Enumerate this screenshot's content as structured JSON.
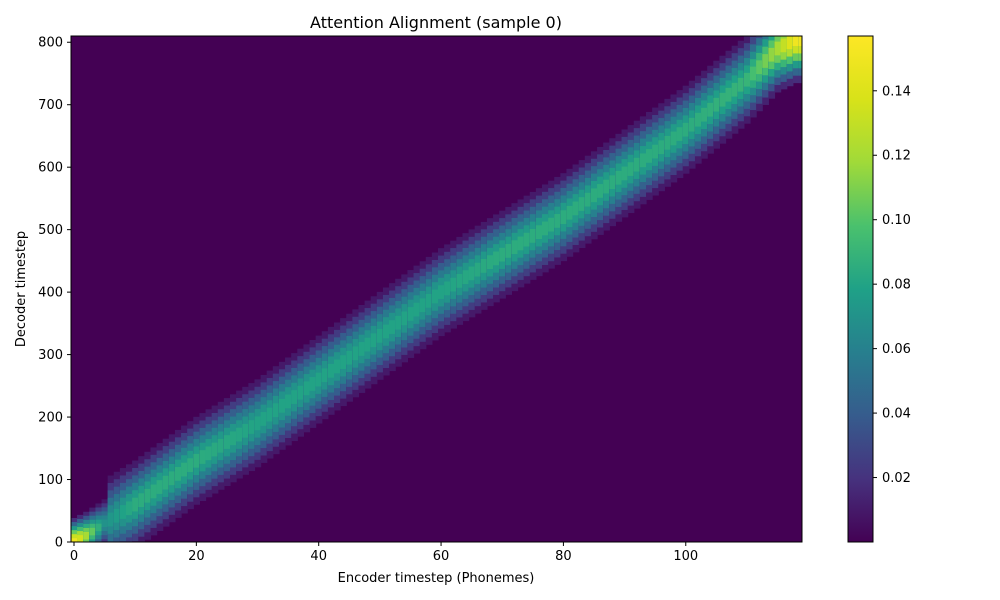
{
  "chart_data": {
    "type": "heatmap",
    "title": "Attention Alignment (sample 0)",
    "xlabel": "Encoder timestep (Phonemes)",
    "ylabel": "Decoder timestep",
    "xlim": [
      0,
      119
    ],
    "ylim": [
      0,
      810
    ],
    "x_ticks": [
      0,
      20,
      40,
      60,
      80,
      100
    ],
    "y_ticks": [
      0,
      100,
      200,
      300,
      400,
      500,
      600,
      700,
      800
    ],
    "colorbar": {
      "colormap": "viridis",
      "range": [
        0.0,
        0.157
      ],
      "ticks": [
        0.02,
        0.04,
        0.06,
        0.08,
        0.1,
        0.12,
        0.14
      ],
      "tick_labels": [
        "0.02",
        "0.04",
        "0.06",
        "0.08",
        "0.10",
        "0.12",
        "0.14"
      ]
    },
    "alignment_path": [
      {
        "encoder": 0,
        "decoder": 0,
        "weight": 0.15
      },
      {
        "encoder": 2,
        "decoder": 10,
        "weight": 0.12
      },
      {
        "encoder": 5,
        "decoder": 30,
        "weight": 0.07
      },
      {
        "encoder": 10,
        "decoder": 60,
        "weight": 0.085
      },
      {
        "encoder": 20,
        "decoder": 130,
        "weight": 0.085
      },
      {
        "encoder": 30,
        "decoder": 190,
        "weight": 0.08
      },
      {
        "encoder": 40,
        "decoder": 260,
        "weight": 0.08
      },
      {
        "encoder": 50,
        "decoder": 330,
        "weight": 0.08
      },
      {
        "encoder": 60,
        "decoder": 400,
        "weight": 0.08
      },
      {
        "encoder": 70,
        "decoder": 460,
        "weight": 0.085
      },
      {
        "encoder": 80,
        "decoder": 520,
        "weight": 0.085
      },
      {
        "encoder": 90,
        "decoder": 590,
        "weight": 0.085
      },
      {
        "encoder": 100,
        "decoder": 660,
        "weight": 0.085
      },
      {
        "encoder": 110,
        "decoder": 740,
        "weight": 0.09
      },
      {
        "encoder": 115,
        "decoder": 790,
        "weight": 0.12
      },
      {
        "encoder": 118,
        "decoder": 805,
        "weight": 0.15
      }
    ]
  }
}
